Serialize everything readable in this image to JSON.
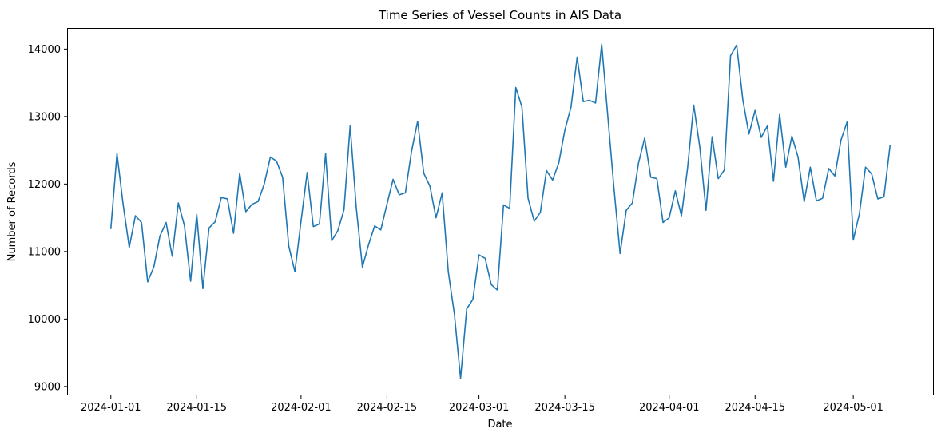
{
  "chart_data": {
    "type": "line",
    "title": "Time Series of Vessel Counts in AIS Data",
    "xlabel": "Date",
    "ylabel": "Number of Records",
    "x_start": "2024-01-01",
    "x_end": "2024-05-06",
    "xlim": [
      "2023-12-25",
      "2024-05-14"
    ],
    "ylim": [
      8880,
      14300
    ],
    "xticks": [
      "2024-01-01",
      "2024-01-15",
      "2024-02-01",
      "2024-02-15",
      "2024-03-01",
      "2024-03-15",
      "2024-04-01",
      "2024-04-15",
      "2024-05-01"
    ],
    "yticks": [
      9000,
      10000,
      11000,
      12000,
      13000,
      14000
    ],
    "grid": false,
    "series": [
      {
        "color": "#1f77b4",
        "values": [
          11340,
          12450,
          11700,
          11060,
          11530,
          11430,
          10550,
          10770,
          11230,
          11430,
          10930,
          11720,
          11380,
          10560,
          11550,
          10450,
          11350,
          11440,
          11800,
          11780,
          11270,
          12160,
          11590,
          11700,
          11740,
          12000,
          12400,
          12340,
          12100,
          11080,
          10700,
          11450,
          12170,
          11370,
          11410,
          12450,
          11160,
          11310,
          11620,
          12860,
          11650,
          10770,
          11100,
          11380,
          11320,
          11700,
          12070,
          11840,
          11870,
          12480,
          12930,
          12160,
          11970,
          11500,
          11870,
          10700,
          10070,
          9120,
          10150,
          10290,
          10950,
          10900,
          10510,
          10430,
          11690,
          11640,
          13430,
          13140,
          11790,
          11450,
          11580,
          12200,
          12060,
          12310,
          12800,
          13140,
          13880,
          13220,
          13240,
          13200,
          14070,
          13000,
          11940,
          10970,
          11610,
          11720,
          12310,
          12680,
          12100,
          12080,
          11430,
          11500,
          11900,
          11530,
          12240,
          13170,
          12540,
          11610,
          12700,
          12080,
          12210,
          13900,
          14060,
          13250,
          12740,
          13090,
          12690,
          12860,
          12040,
          13030,
          12250,
          12710,
          12400,
          11740,
          12250,
          11750,
          11790,
          12230,
          12120,
          12650,
          12920,
          11170,
          11560,
          12250,
          12150,
          11780,
          11810,
          12570
        ]
      }
    ]
  }
}
